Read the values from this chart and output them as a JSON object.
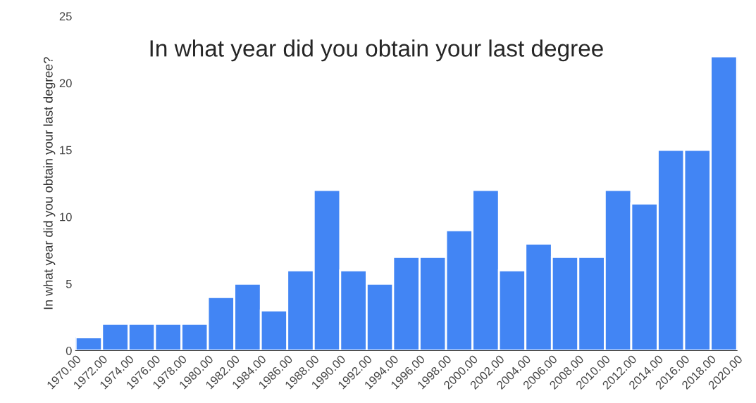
{
  "chart_data": {
    "type": "histogram",
    "title": "In what year did you obtain your last degree",
    "ylabel": "In what year did you obtain your last degree?",
    "color": "#4285f4",
    "bins": [
      1970,
      1972,
      1974,
      1976,
      1978,
      1980,
      1982,
      1984,
      1986,
      1988,
      1990,
      1992,
      1994,
      1996,
      1998,
      2000,
      2002,
      2004,
      2006,
      2008,
      2010,
      2012,
      2014,
      2016,
      2018,
      2020
    ],
    "values": [
      1,
      2,
      2,
      2,
      2,
      4,
      5,
      3,
      6,
      12,
      6,
      5,
      7,
      7,
      9,
      12,
      6,
      8,
      7,
      7,
      12,
      11,
      15,
      15,
      22
    ],
    "xlim": [
      1970,
      2020
    ],
    "ylim": [
      0,
      25
    ],
    "yticks": [
      0,
      5,
      10,
      15,
      20,
      25
    ],
    "xticks": [
      {
        "value": 1970,
        "label": "1970.00"
      },
      {
        "value": 1972,
        "label": "1972.00"
      },
      {
        "value": 1974,
        "label": "1974.00"
      },
      {
        "value": 1976,
        "label": "1976.00"
      },
      {
        "value": 1978,
        "label": "1978.00"
      },
      {
        "value": 1980,
        "label": "1980.00"
      },
      {
        "value": 1982,
        "label": "1982.00"
      },
      {
        "value": 1984,
        "label": "1984.00"
      },
      {
        "value": 1986,
        "label": "1986.00"
      },
      {
        "value": 1988,
        "label": "1988.00"
      },
      {
        "value": 1990,
        "label": "1990.00"
      },
      {
        "value": 1992,
        "label": "1992.00"
      },
      {
        "value": 1994,
        "label": "1994.00"
      },
      {
        "value": 1996,
        "label": "1996.00"
      },
      {
        "value": 1998,
        "label": "1998.00"
      },
      {
        "value": 2000,
        "label": "2000.00"
      },
      {
        "value": 2002,
        "label": "2002.00"
      },
      {
        "value": 2004,
        "label": "2004.00"
      },
      {
        "value": 2006,
        "label": "2006.00"
      },
      {
        "value": 2008,
        "label": "2008.00"
      },
      {
        "value": 2010,
        "label": "2010.00"
      },
      {
        "value": 2012,
        "label": "2012.00"
      },
      {
        "value": 2014,
        "label": "2014.00"
      },
      {
        "value": 2016,
        "label": "2016.00"
      },
      {
        "value": 2018,
        "label": "2018.00"
      },
      {
        "value": 2020,
        "label": "2020.00"
      }
    ]
  }
}
